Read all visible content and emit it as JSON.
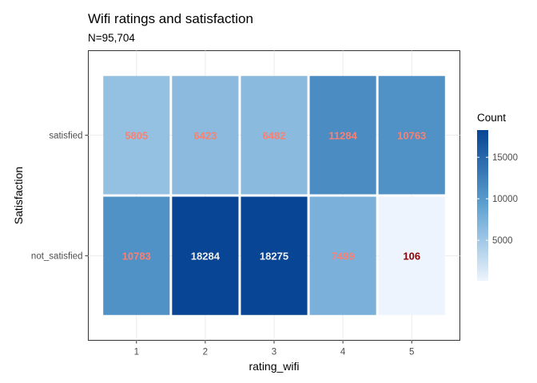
{
  "chart_data": {
    "type": "heatmap",
    "title": "Wifi ratings and satisfaction",
    "subtitle": "N=95,704",
    "xlabel": "rating_wifi",
    "ylabel": "Satisfaction",
    "x_categories": [
      "1",
      "2",
      "3",
      "4",
      "5"
    ],
    "y_categories": [
      "not_satisfied",
      "satisfied"
    ],
    "cells": [
      {
        "x": "1",
        "y": "satisfied",
        "value": 5805
      },
      {
        "x": "2",
        "y": "satisfied",
        "value": 6423
      },
      {
        "x": "3",
        "y": "satisfied",
        "value": 6482
      },
      {
        "x": "4",
        "y": "satisfied",
        "value": 11284
      },
      {
        "x": "5",
        "y": "satisfied",
        "value": 10763
      },
      {
        "x": "1",
        "y": "not_satisfied",
        "value": 10783
      },
      {
        "x": "2",
        "y": "not_satisfied",
        "value": 18284
      },
      {
        "x": "3",
        "y": "not_satisfied",
        "value": 18275
      },
      {
        "x": "4",
        "y": "not_satisfied",
        "value": 7499
      },
      {
        "x": "5",
        "y": "not_satisfied",
        "value": 106
      }
    ],
    "legend": {
      "title": "Count",
      "ticks": [
        5000,
        10000,
        15000
      ],
      "placement": "right",
      "range": [
        106,
        18284
      ]
    },
    "colors": {
      "low": "#eef4fd",
      "mid": "#5fa1d1",
      "high": "#084594",
      "label_low": "#8b0000",
      "label_mid": "#fa8072",
      "label_high": "#f0f0f0"
    },
    "grid": true
  }
}
